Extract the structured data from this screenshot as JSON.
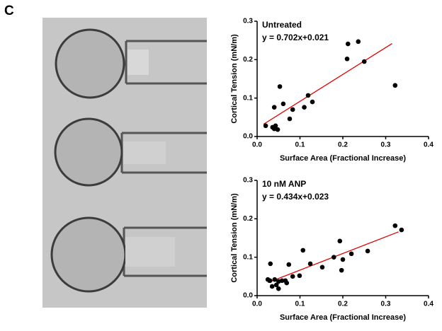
{
  "panel_label": "C",
  "chart_data": [
    {
      "type": "scatter",
      "title": "Untreated",
      "annotation": "y = 0.702x+0.021",
      "x_label": "Surface Area (Fractional Increase)",
      "y_label": "Cortical Tension (mN/m)",
      "xlim": [
        0,
        0.4
      ],
      "ylim": [
        0,
        0.3
      ],
      "xticks": [
        {
          "value": 0,
          "label": "0.0"
        },
        0.1,
        0.2,
        0.3,
        0.4
      ],
      "yticks": [
        {
          "value": 0,
          "label": "0.0"
        },
        0.1,
        0.2,
        0.3
      ],
      "color": "#000000",
      "x": [
        0.02,
        0.036,
        0.04,
        0.043,
        0.04,
        0.048,
        0.053,
        0.061,
        0.076,
        0.083,
        0.11,
        0.119,
        0.129,
        0.21,
        0.212,
        0.236,
        0.25,
        0.322
      ],
      "values": [
        0.028,
        0.024,
        0.02,
        0.028,
        0.076,
        0.018,
        0.13,
        0.085,
        0.046,
        0.07,
        0.076,
        0.107,
        0.09,
        0.202,
        0.241,
        0.247,
        0.195,
        0.133
      ],
      "fit": {
        "x": [
          0.015,
          0.315
        ],
        "values": [
          0.032,
          0.242
        ],
        "color": "#e00000"
      }
    },
    {
      "type": "scatter",
      "title": "10 nM ANP",
      "annotation": "y = 0.434x+0.023",
      "x_label": "Surface Area (Fractional Increase)",
      "y_label": "Cortical Tension (mN/m)",
      "xlim": [
        0,
        0.4
      ],
      "ylim": [
        0,
        0.3
      ],
      "xticks": [
        {
          "value": 0,
          "label": "0.0"
        },
        0.1,
        0.2,
        0.3,
        0.4
      ],
      "yticks": [
        {
          "value": 0,
          "label": "0.0"
        },
        0.1,
        0.2,
        0.3
      ],
      "color": "#000000",
      "x": [
        0.025,
        0.03,
        0.031,
        0.035,
        0.041,
        0.045,
        0.05,
        0.05,
        0.058,
        0.066,
        0.069,
        0.074,
        0.083,
        0.099,
        0.107,
        0.124,
        0.152,
        0.179,
        0.193,
        0.197,
        0.2,
        0.22,
        0.258,
        0.322,
        0.337
      ],
      "values": [
        0.042,
        0.039,
        0.083,
        0.024,
        0.042,
        0.028,
        0.018,
        0.037,
        0.039,
        0.039,
        0.033,
        0.081,
        0.05,
        0.052,
        0.118,
        0.083,
        0.074,
        0.1,
        0.142,
        0.066,
        0.094,
        0.109,
        0.116,
        0.182,
        0.171
      ],
      "fit": {
        "x": [
          0.025,
          0.33
        ],
        "values": [
          0.034,
          0.166
        ],
        "color": "#e00000"
      }
    }
  ]
}
